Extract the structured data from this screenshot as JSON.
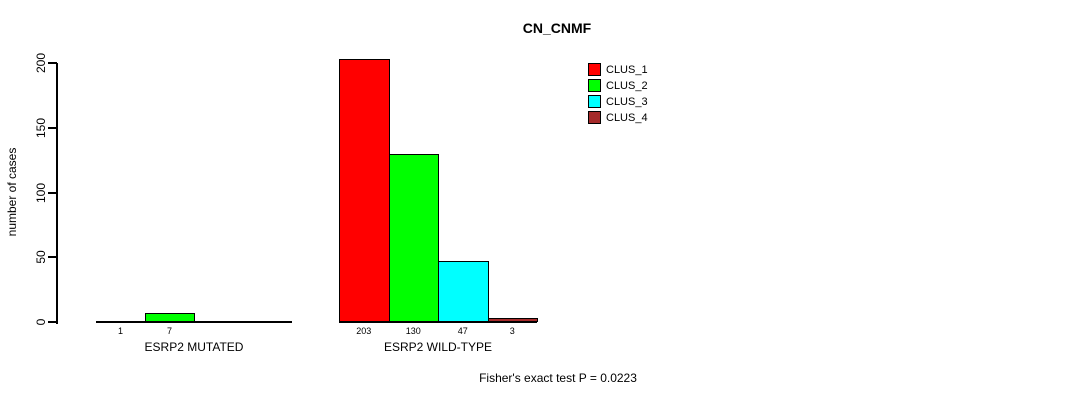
{
  "chart_data": {
    "type": "bar",
    "title": "CN_CNMF",
    "xlabel": "",
    "ylabel": "number of cases",
    "ylim": [
      0,
      200
    ],
    "yticks": [
      0,
      50,
      100,
      150,
      200
    ],
    "grid": false,
    "legend_position": "top-right",
    "series": [
      {
        "name": "CLUS_1",
        "color": "#ff0000"
      },
      {
        "name": "CLUS_2",
        "color": "#00ff00"
      },
      {
        "name": "CLUS_3",
        "color": "#00ffff"
      },
      {
        "name": "CLUS_4",
        "color": "#a52a2a"
      }
    ],
    "groups": [
      {
        "label": "ESRP2 MUTATED",
        "values": [
          1,
          7,
          0,
          0
        ]
      },
      {
        "label": "ESRP2 WILD-TYPE",
        "values": [
          203,
          130,
          47,
          3
        ]
      }
    ],
    "bar_value_labels_shown": [
      "1",
      "7",
      "203",
      "130",
      "47",
      "3"
    ],
    "annotation": "Fisher's exact test P = 0.0223"
  }
}
